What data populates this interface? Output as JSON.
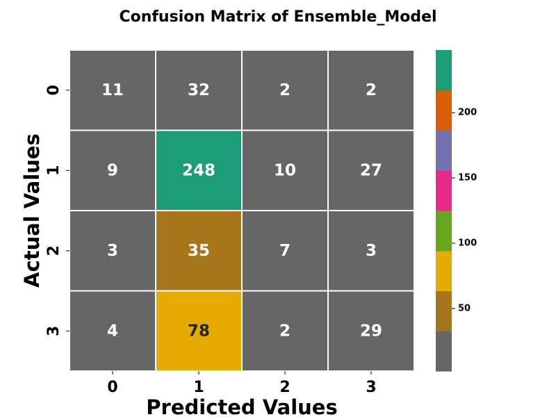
{
  "chart_data": {
    "type": "heatmap",
    "title": "Confusion Matrix of Ensemble_Model",
    "xlabel": "Predicted Values",
    "ylabel": "Actual Values",
    "x_categories": [
      "0",
      "1",
      "2",
      "3"
    ],
    "y_categories": [
      "0",
      "1",
      "2",
      "3"
    ],
    "values": [
      [
        11,
        32,
        2,
        2
      ],
      [
        9,
        248,
        10,
        27
      ],
      [
        3,
        35,
        7,
        3
      ],
      [
        4,
        78,
        2,
        29
      ]
    ],
    "colorbar": {
      "range": [
        2,
        248
      ],
      "ticks": [
        50,
        100,
        150,
        200
      ],
      "colors": [
        "#666666",
        "#a6761d",
        "#e6ab02",
        "#66a61e",
        "#e7298a",
        "#7570b3",
        "#d95f02",
        "#1b9e77"
      ],
      "colormap": "Dark2_r",
      "placement": "right"
    },
    "grid": false
  }
}
